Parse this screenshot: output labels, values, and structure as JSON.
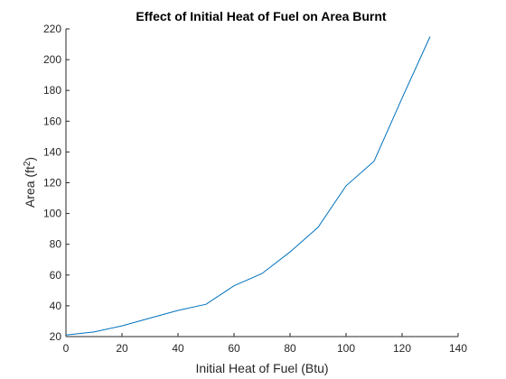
{
  "chart_data": {
    "type": "line",
    "title": "Effect of Initial Heat of Fuel on Area Burnt",
    "xlabel": "Initial Heat of Fuel (Btu)",
    "ylabel_main": "Area (ft",
    "ylabel_sup": "2",
    "ylabel_end": ")",
    "xlim": [
      0,
      140
    ],
    "ylim": [
      20,
      220
    ],
    "xticks": [
      0,
      20,
      40,
      60,
      80,
      100,
      120,
      140
    ],
    "yticks": [
      20,
      40,
      60,
      80,
      100,
      120,
      140,
      160,
      180,
      200,
      220
    ],
    "grid": false,
    "series": [
      {
        "color": "#0072bd",
        "x": [
          0,
          10,
          20,
          30,
          40,
          50,
          60,
          70,
          80,
          90,
          100,
          110,
          120,
          130
        ],
        "y": [
          21,
          23,
          27,
          32,
          37,
          41,
          53,
          61,
          75,
          91,
          118,
          134,
          175,
          215
        ]
      }
    ]
  }
}
